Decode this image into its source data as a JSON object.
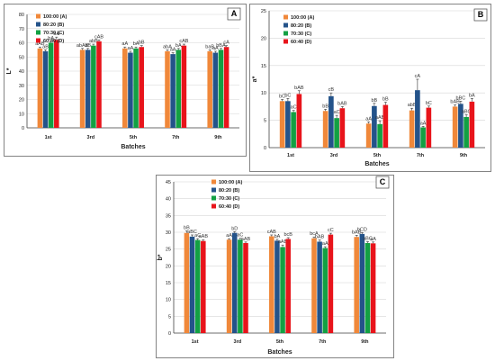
{
  "chart_data": [
    {
      "type": "bar",
      "panel_label": "A",
      "categories": [
        "1st",
        "3rd",
        "5th",
        "7th",
        "9th"
      ],
      "xlabel": "Batches",
      "ylabel": "L*",
      "ylim": [
        0,
        80
      ],
      "yticks": [
        0,
        10,
        20,
        30,
        40,
        50,
        60,
        70,
        80
      ],
      "legend_position": "top-left",
      "series": [
        {
          "name": "100:00 (A)",
          "color": "#F0883A",
          "values": [
            56,
            55,
            56,
            54,
            54
          ],
          "errors": [
            1,
            1,
            1,
            1,
            1
          ],
          "labels": [
            "aAB",
            "abAB",
            "aA",
            "abA",
            "baB"
          ]
        },
        {
          "name": "80:20 (B)",
          "color": "#24538A",
          "values": [
            54,
            55,
            53,
            52,
            53
          ],
          "errors": [
            1,
            1,
            1,
            1,
            1
          ],
          "labels": [
            "aB",
            "aB",
            "aA",
            "aA",
            "aA"
          ]
        },
        {
          "name": "70:30 (C)",
          "color": "#13A043",
          "values": [
            60,
            58,
            56,
            55,
            55
          ],
          "errors": [
            1,
            1,
            1,
            1,
            1
          ],
          "labels": [
            "bA",
            "abB",
            "bA",
            "bA",
            "bBA"
          ]
        },
        {
          "name": "60:40 (D)",
          "color": "#E8141B",
          "values": [
            62,
            61,
            57,
            58,
            57
          ],
          "errors": [
            2,
            1,
            1,
            1,
            1
          ],
          "labels": [
            "bA",
            "cAB",
            "bB",
            "cAB",
            "cA"
          ]
        }
      ]
    },
    {
      "type": "bar",
      "panel_label": "B",
      "categories": [
        "1st",
        "3rd",
        "5th",
        "7th",
        "9th"
      ],
      "xlabel": "Batches",
      "ylabel": "a*",
      "ylim": [
        0,
        25
      ],
      "yticks": [
        0,
        5,
        10,
        15,
        20,
        25
      ],
      "legend_position": "top-left",
      "series": [
        {
          "name": "100:00 (A)",
          "color": "#F0883A",
          "values": [
            8.5,
            6.7,
            4.4,
            6.8,
            7.5
          ],
          "errors": [
            0.3,
            0.3,
            0.3,
            0.4,
            0.3
          ],
          "labels": [
            "bC",
            "bB",
            "aA",
            "abB",
            "bAB"
          ]
        },
        {
          "name": "80:20 (B)",
          "color": "#24538A",
          "values": [
            8.5,
            9.4,
            7.6,
            10.5,
            8.0
          ],
          "errors": [
            0.5,
            0.6,
            0.5,
            2.0,
            0.5
          ],
          "labels": [
            "bC",
            "cB",
            "bB",
            "cA",
            "bBC"
          ]
        },
        {
          "name": "70:30 (C)",
          "color": "#13A043",
          "values": [
            6.5,
            5.4,
            4.3,
            3.7,
            5.6
          ],
          "errors": [
            0.3,
            0.5,
            0.6,
            0.2,
            0.4
          ],
          "labels": [
            "aC",
            "aC",
            "aAB",
            "aA",
            "aBC"
          ]
        },
        {
          "name": "60:40 (D)",
          "color": "#E8141B",
          "values": [
            9.8,
            7.2,
            7.8,
            7.3,
            8.4
          ],
          "errors": [
            0.6,
            0.3,
            0.5,
            0.3,
            0.6
          ],
          "labels": [
            "bAB",
            "bAB",
            "bB",
            "bC",
            "bA"
          ]
        }
      ]
    },
    {
      "type": "bar",
      "panel_label": "C",
      "categories": [
        "1st",
        "3rd",
        "5th",
        "7th",
        "9th"
      ],
      "xlabel": "Batches",
      "ylabel": "b*",
      "ylim": [
        0,
        45
      ],
      "yticks": [
        0,
        5,
        10,
        15,
        20,
        25,
        30,
        35,
        40,
        45
      ],
      "legend_position": "top-left",
      "series": [
        {
          "name": "100:00 (A)",
          "color": "#F0883A",
          "values": [
            29.8,
            27.8,
            28.8,
            28.2,
            28.6
          ],
          "errors": [
            0.6,
            0.3,
            0.4,
            0.4,
            0.5
          ],
          "labels": [
            "bB",
            "aA",
            "cAB",
            "bcA",
            "bAB"
          ]
        },
        {
          "name": "80:20 (B)",
          "color": "#24538A",
          "values": [
            28.7,
            29.8,
            27.5,
            27.2,
            29.5
          ],
          "errors": [
            0.5,
            0.4,
            0.4,
            0.5,
            0.4
          ],
          "labels": [
            "aBC",
            "bD",
            "bA",
            "bAB",
            "bCD"
          ]
        },
        {
          "name": "70:30 (C)",
          "color": "#13A043",
          "values": [
            27.7,
            27.8,
            25.6,
            25.3,
            26.8
          ],
          "errors": [
            0.4,
            0.4,
            0.6,
            0.4,
            0.4
          ],
          "labels": [
            "aC",
            "aC",
            "aAB",
            "aA",
            "aBC"
          ]
        },
        {
          "name": "60:40 (D)",
          "color": "#E8141B",
          "values": [
            27.4,
            26.8,
            28.0,
            29.3,
            26.7
          ],
          "errors": [
            0.4,
            0.3,
            0.4,
            0.4,
            0.4
          ],
          "labels": [
            "aAB",
            "aAB",
            "bcB",
            "cC",
            "aA"
          ]
        }
      ]
    }
  ]
}
